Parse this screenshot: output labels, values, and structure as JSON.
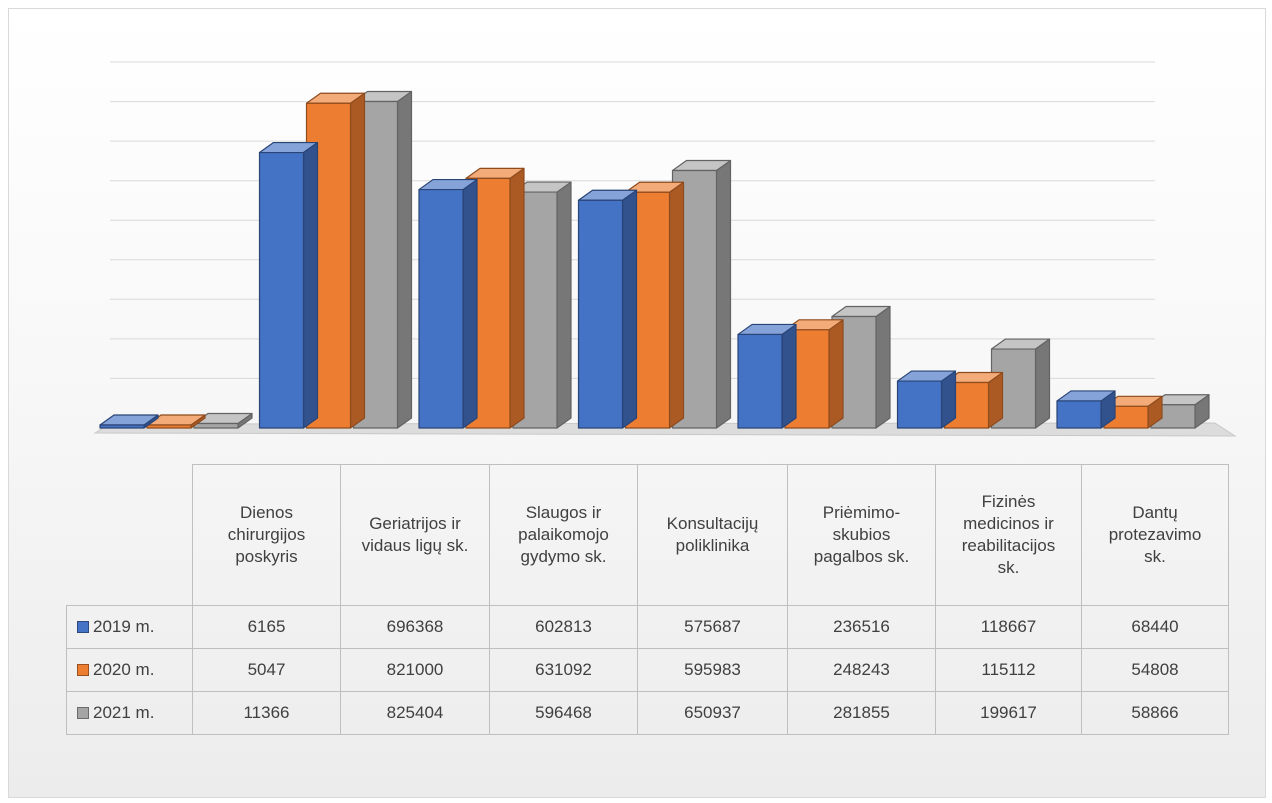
{
  "chart_data": {
    "type": "bar",
    "categories": [
      "Dienos chirurgijos poskyris",
      "Geriatrijos ir vidaus ligų sk.",
      "Slaugos ir palaikomojo gydymo sk.",
      "Konsultacijų poliklinika",
      "Priėmimo-skubios pagalbos sk.",
      "Fizinės medicinos ir reabilitacijos sk.",
      "Dantų protezavimo sk."
    ],
    "category_lines": [
      [
        "Dienos",
        "chirurgijos",
        "poskyris"
      ],
      [
        "Geriatrijos ir",
        "vidaus ligų sk."
      ],
      [
        "Slaugos ir",
        "palaikomojo",
        "gydymo sk."
      ],
      [
        "Konsultacijų",
        "poliklinika"
      ],
      [
        "Priėmimo-",
        "skubios",
        "pagalbos sk."
      ],
      [
        "Fizinės",
        "medicinos ir",
        "reabilitacijos",
        "sk."
      ],
      [
        "Dantų",
        "protezavimo",
        "sk."
      ]
    ],
    "series": [
      {
        "name": "2019 m.",
        "color": "#4472c4",
        "values": [
          6165,
          696368,
          602813,
          575687,
          236516,
          118667,
          68440
        ]
      },
      {
        "name": "2020 m.",
        "color": "#ed7d31",
        "values": [
          5047,
          821000,
          631092,
          595983,
          248243,
          115112,
          54808
        ]
      },
      {
        "name": "2021 m.",
        "color": "#a5a5a5",
        "values": [
          11366,
          825404,
          596468,
          650937,
          281855,
          199617,
          58866
        ]
      }
    ],
    "ylim": [
      0,
      900000
    ],
    "grid": true,
    "legend": "data table",
    "style": "3d-clustered-column"
  }
}
